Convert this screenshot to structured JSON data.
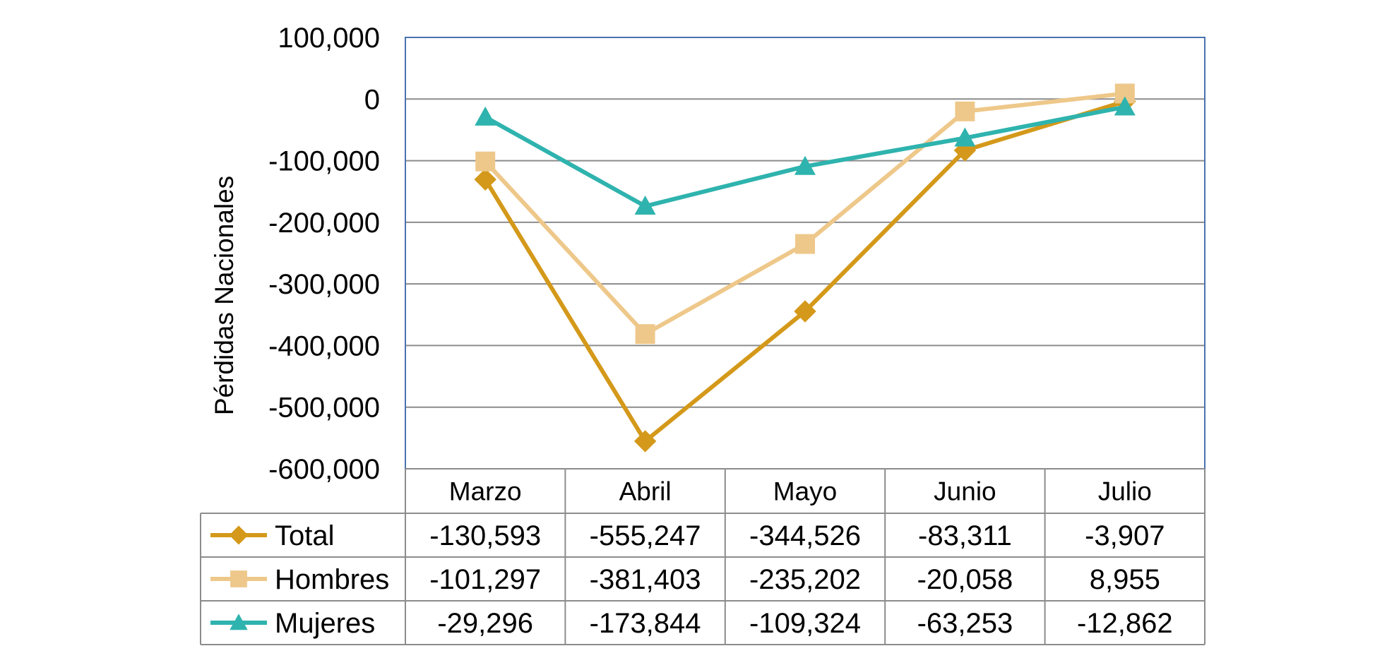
{
  "chart_data": {
    "type": "line",
    "title": "",
    "xlabel": "",
    "ylabel": "Pérdidas  Nacionales",
    "ylim": [
      -600000,
      100000
    ],
    "yticks": [
      100000,
      0,
      -100000,
      -200000,
      -300000,
      -400000,
      -500000,
      -600000
    ],
    "ytick_labels": [
      "100,000",
      "0",
      "-100,000",
      "-200,000",
      "-300,000",
      "-400,000",
      "-500,000",
      "-600,000"
    ],
    "grid": true,
    "legend": "data-table-left",
    "categories": [
      "Marzo",
      "Abril",
      "Mayo",
      "Junio",
      "Julio"
    ],
    "series": [
      {
        "name": "Total",
        "values": [
          -130593,
          -555247,
          -344526,
          -83311,
          -3907
        ],
        "labels": [
          "-130,593",
          "-555,247",
          "-344,526",
          "-83,311",
          "-3,907"
        ],
        "color": "#D4991A",
        "marker": "diamond"
      },
      {
        "name": "Hombres",
        "values": [
          -101297,
          -381403,
          -235202,
          -20058,
          8955
        ],
        "labels": [
          "-101,297",
          "-381,403",
          "-235,202",
          "-20,058",
          "8,955"
        ],
        "color": "#EEC88A",
        "marker": "square"
      },
      {
        "name": "Mujeres",
        "values": [
          -29296,
          -173844,
          -109324,
          -63253,
          -12862
        ],
        "labels": [
          "-29,296",
          "-173,844",
          "-109,324",
          "-63,253",
          "-12,862"
        ],
        "color": "#2FB3AE",
        "marker": "triangle"
      }
    ]
  }
}
